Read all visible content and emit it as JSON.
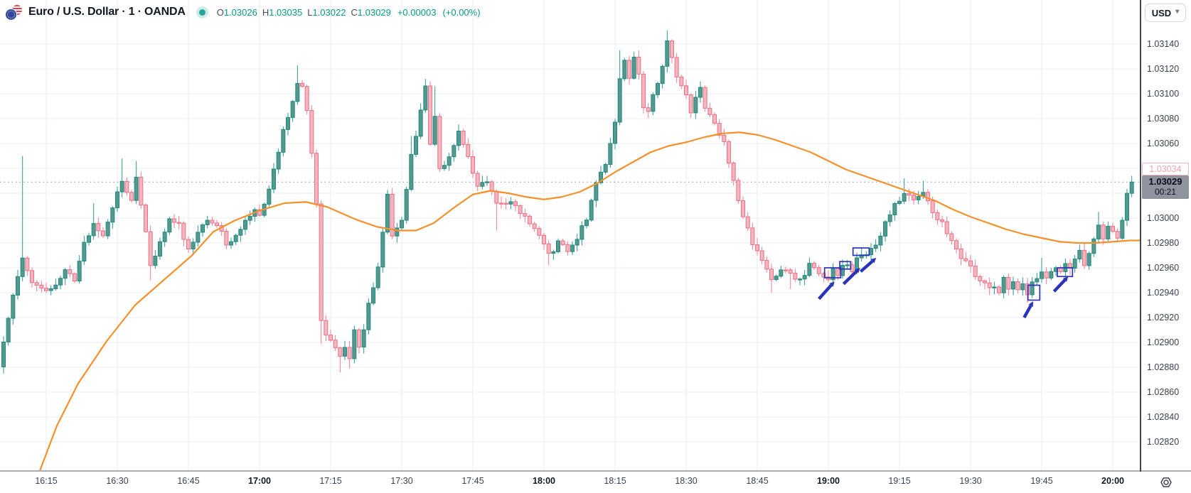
{
  "header": {
    "symbol_title": "Euro / U.S. Dollar · 1 · OANDA",
    "ohlc": {
      "open_label": "O",
      "open": "1.03026",
      "high_label": "H",
      "high": "1.03035",
      "low_label": "L",
      "low": "1.03022",
      "close_label": "C",
      "close": "1.03029",
      "change": "+0.00003",
      "change_percent": "(+0.00%)"
    }
  },
  "price_scale": {
    "currency_button": "USD",
    "ask_badge": "1.03034",
    "last_badge": "1.03029",
    "countdown": "00:21"
  },
  "time_scale": {
    "labels": [
      {
        "text": "16:15",
        "bold": false
      },
      {
        "text": "16:30",
        "bold": false
      },
      {
        "text": "16:45",
        "bold": false
      },
      {
        "text": "17:00",
        "bold": true
      },
      {
        "text": "17:15",
        "bold": false
      },
      {
        "text": "17:30",
        "bold": false
      },
      {
        "text": "17:45",
        "bold": false
      },
      {
        "text": "18:00",
        "bold": true
      },
      {
        "text": "18:15",
        "bold": false
      },
      {
        "text": "18:30",
        "bold": false
      },
      {
        "text": "18:45",
        "bold": false
      },
      {
        "text": "19:00",
        "bold": true
      },
      {
        "text": "19:15",
        "bold": false
      },
      {
        "text": "19:30",
        "bold": false
      },
      {
        "text": "19:45",
        "bold": false
      },
      {
        "text": "20:00",
        "bold": true
      }
    ]
  },
  "colors": {
    "up_body": "#549890",
    "up_border": "#1f897d",
    "up_wick": "#2b9a8e",
    "down_body": "#f3b5bf",
    "down_border": "#ee6e82",
    "down_wick": "#ed7d90",
    "ma_line": "#f5902a",
    "grid_v": "#e5edee",
    "grid_h": "#eaeef4",
    "last_price_dotted": "#8b8e98",
    "annotation": "#2b33b8",
    "ohlc_value": "#089981",
    "ask_label": "#f0a2b4",
    "last_label_bg": "#8f939d"
  },
  "chart_data": {
    "type": "candlestick",
    "title": "Euro / U.S. Dollar",
    "exchange": "OANDA",
    "interval_minutes": 1,
    "candles_visible": 239,
    "visible_time_range": [
      "16:06",
      "20:05"
    ],
    "visible_price_range": [
      1.02797,
      1.03157
    ],
    "session_low": 1.02876,
    "session_high": 1.03151,
    "last_candle": {
      "open": 1.03026,
      "high": 1.03035,
      "low": 1.03022,
      "close": 1.03029,
      "change": 3e-05,
      "change_percent": 0.0
    },
    "last_price": 1.03029,
    "ask_price": 1.03034,
    "grid": {
      "h_step_price": 0.0002,
      "v_step_minutes": 15
    },
    "axis": {
      "price_label_ticks": [
        1.0314,
        1.0312,
        1.031,
        1.0308,
        1.0306,
        1.03,
        1.0298,
        1.0296,
        1.0294,
        1.0292,
        1.029,
        1.0288,
        1.0286,
        1.0284,
        1.0282
      ],
      "hidden_price_ticks": [
        1.0304,
        1.0302
      ],
      "price_grid_ticks": [
        1.0282,
        1.0284,
        1.0286,
        1.0288,
        1.029,
        1.0292,
        1.0294,
        1.0296,
        1.0298,
        1.03,
        1.0302,
        1.0304,
        1.0306,
        1.0308,
        1.031,
        1.0312,
        1.0314
      ]
    },
    "price_path": {
      "description": "close-price anchors, t = minutes after 16:06",
      "anchors": [
        [
          0,
          1.029
        ],
        [
          2,
          1.0294
        ],
        [
          4,
          1.0297
        ],
        [
          6,
          1.0295
        ],
        [
          9,
          1.0294
        ],
        [
          11,
          1.02945
        ],
        [
          13,
          1.0296
        ],
        [
          15,
          1.0295
        ],
        [
          17,
          1.0298
        ],
        [
          19,
          1.02995
        ],
        [
          21,
          1.02985
        ],
        [
          23,
          1.0301
        ],
        [
          25,
          1.0303
        ],
        [
          27,
          1.03015
        ],
        [
          28,
          1.03035
        ],
        [
          30,
          1.0299
        ],
        [
          31,
          1.0296
        ],
        [
          33,
          1.0298
        ],
        [
          35,
          1.03
        ],
        [
          37,
          1.02995
        ],
        [
          39,
          1.02975
        ],
        [
          41,
          1.0299
        ],
        [
          43,
          1.03
        ],
        [
          45,
          1.02995
        ],
        [
          47,
          1.0298
        ],
        [
          49,
          1.02985
        ],
        [
          51,
          1.03
        ],
        [
          53,
          1.03005
        ],
        [
          54,
          1.03
        ],
        [
          55,
          1.0301
        ],
        [
          57,
          1.0304
        ],
        [
          59,
          1.0307
        ],
        [
          61,
          1.03095
        ],
        [
          62,
          1.0311
        ],
        [
          63,
          1.03105
        ],
        [
          64,
          1.03085
        ],
        [
          65,
          1.0305
        ],
        [
          66,
          1.03012
        ],
        [
          67,
          1.02918
        ],
        [
          68,
          1.02905
        ],
        [
          69,
          1.029
        ],
        [
          70,
          1.02895
        ],
        [
          71,
          1.02888
        ],
        [
          72,
          1.02895
        ],
        [
          73,
          1.02885
        ],
        [
          74,
          1.0291
        ],
        [
          75,
          1.02895
        ],
        [
          76,
          1.0291
        ],
        [
          77,
          1.0293
        ],
        [
          79,
          1.0296
        ],
        [
          81,
          1.0302
        ],
        [
          82,
          1.02985
        ],
        [
          84,
          1.03
        ],
        [
          86,
          1.0305
        ],
        [
          88,
          1.03085
        ],
        [
          89,
          1.03105
        ],
        [
          90,
          1.0306
        ],
        [
          91,
          1.0308
        ],
        [
          92,
          1.03038
        ],
        [
          94,
          1.0305
        ],
        [
          96,
          1.0307
        ],
        [
          98,
          1.0305
        ],
        [
          100,
          1.03025
        ],
        [
          102,
          1.0303
        ],
        [
          104,
          1.0301
        ],
        [
          107,
          1.03015
        ],
        [
          110,
          1.03
        ],
        [
          113,
          1.02985
        ],
        [
          115,
          1.0297
        ],
        [
          117,
          1.0298
        ],
        [
          119,
          1.02975
        ],
        [
          121,
          1.02985
        ],
        [
          123,
          1.03
        ],
        [
          125,
          1.0303
        ],
        [
          127,
          1.03045
        ],
        [
          129,
          1.03075
        ],
        [
          130,
          1.0311
        ],
        [
          131,
          1.03125
        ],
        [
          132,
          1.03112
        ],
        [
          133,
          1.03128
        ],
        [
          134,
          1.03118
        ],
        [
          135,
          1.0309
        ],
        [
          136,
          1.03085
        ],
        [
          137,
          1.03098
        ],
        [
          138,
          1.0311
        ],
        [
          139,
          1.03122
        ],
        [
          140,
          1.03142
        ],
        [
          141,
          1.03128
        ],
        [
          142,
          1.03115
        ],
        [
          143,
          1.03105
        ],
        [
          144,
          1.03098
        ],
        [
          145,
          1.03085
        ],
        [
          146,
          1.03095
        ],
        [
          147,
          1.03105
        ],
        [
          148,
          1.0309
        ],
        [
          150,
          1.03075
        ],
        [
          152,
          1.0306
        ],
        [
          154,
          1.0303
        ],
        [
          156,
          1.03
        ],
        [
          158,
          1.0298
        ],
        [
          160,
          1.02965
        ],
        [
          162,
          1.0295
        ],
        [
          164,
          1.0296
        ],
        [
          166,
          1.02955
        ],
        [
          168,
          1.0295
        ],
        [
          170,
          1.02962
        ],
        [
          172,
          1.02955
        ],
        [
          174,
          1.02952
        ],
        [
          175,
          1.02958
        ],
        [
          176,
          1.02952
        ],
        [
          177,
          1.0296
        ],
        [
          178,
          1.02962
        ],
        [
          179,
          1.02958
        ],
        [
          180,
          1.02968
        ],
        [
          181,
          1.02972
        ],
        [
          182,
          1.0297
        ],
        [
          184,
          1.0298
        ],
        [
          186,
          1.02995
        ],
        [
          188,
          1.0301
        ],
        [
          190,
          1.0302
        ],
        [
          192,
          1.03015
        ],
        [
          194,
          1.03022
        ],
        [
          196,
          1.03005
        ],
        [
          198,
          1.02995
        ],
        [
          200,
          1.0298
        ],
        [
          202,
          1.02968
        ],
        [
          204,
          1.0296
        ],
        [
          206,
          1.0295
        ],
        [
          208,
          1.02945
        ],
        [
          210,
          1.02942
        ],
        [
          211,
          1.02952
        ],
        [
          212,
          1.02945
        ],
        [
          213,
          1.0295
        ],
        [
          214,
          1.02942
        ],
        [
          215,
          1.02948
        ],
        [
          216,
          1.0294
        ],
        [
          217,
          1.02948
        ],
        [
          218,
          1.02952
        ],
        [
          219,
          1.02958
        ],
        [
          220,
          1.02952
        ],
        [
          221,
          1.02958
        ],
        [
          222,
          1.02962
        ],
        [
          223,
          1.02958
        ],
        [
          224,
          1.02962
        ],
        [
          225,
          1.02958
        ],
        [
          226,
          1.02965
        ],
        [
          227,
          1.02972
        ],
        [
          228,
          1.0296
        ],
        [
          229,
          1.0297
        ],
        [
          230,
          1.02985
        ],
        [
          231,
          1.02995
        ],
        [
          232,
          1.02985
        ],
        [
          233,
          1.02995
        ],
        [
          234,
          1.0299
        ],
        [
          235,
          1.02985
        ],
        [
          236,
          1.03
        ],
        [
          237,
          1.03018
        ],
        [
          238,
          1.03029
        ]
      ],
      "spikes": [
        {
          "t": 0,
          "low": 1.02878
        },
        {
          "t": 4,
          "high": 1.0305
        },
        {
          "t": 19,
          "high": 1.03012
        },
        {
          "t": 25,
          "high": 1.03048
        },
        {
          "t": 28,
          "high": 1.03046
        },
        {
          "t": 31,
          "low": 1.0295
        },
        {
          "t": 62,
          "high": 1.03123
        },
        {
          "t": 67,
          "low": 1.02899
        },
        {
          "t": 71,
          "low": 1.02876
        },
        {
          "t": 73,
          "low": 1.02879
        },
        {
          "t": 86,
          "high": 1.03066
        },
        {
          "t": 89,
          "high": 1.03112
        },
        {
          "t": 91,
          "high": 1.03106
        },
        {
          "t": 104,
          "low": 1.0299
        },
        {
          "t": 115,
          "low": 1.02962
        },
        {
          "t": 130,
          "high": 1.03135
        },
        {
          "t": 140,
          "high": 1.03151
        },
        {
          "t": 162,
          "low": 1.0294
        },
        {
          "t": 166,
          "low": 1.02943
        },
        {
          "t": 190,
          "high": 1.03032
        },
        {
          "t": 194,
          "high": 1.0303
        },
        {
          "t": 208,
          "low": 1.02938
        },
        {
          "t": 216,
          "low": 1.02932
        },
        {
          "t": 219,
          "high": 1.02968
        },
        {
          "t": 231,
          "high": 1.03005
        },
        {
          "t": 238,
          "high": 1.03034
        }
      ]
    },
    "overlays": [
      {
        "name": "moving-average",
        "type": "line",
        "color": "#f5902a",
        "points": [
          [
            4.5,
            1.02768
          ],
          [
            6,
            1.0278
          ],
          [
            11.25,
            1.02833
          ],
          [
            15.75,
            1.02867
          ],
          [
            21.75,
            1.02901
          ],
          [
            27.75,
            1.0293
          ],
          [
            33.75,
            1.0295
          ],
          [
            39.75,
            1.0297
          ],
          [
            44.25,
            1.02989
          ],
          [
            48.75,
            1.02998
          ],
          [
            54,
            1.03006
          ],
          [
            59.25,
            1.03012
          ],
          [
            63.75,
            1.03013
          ],
          [
            68.25,
            1.03009
          ],
          [
            74.25,
            1.02999
          ],
          [
            78.75,
            1.02993
          ],
          [
            83.25,
            1.0299
          ],
          [
            87,
            1.0299
          ],
          [
            90.75,
            1.02996
          ],
          [
            95.25,
            1.03009
          ],
          [
            99,
            1.03019
          ],
          [
            102.75,
            1.03022
          ],
          [
            106.5,
            1.0302
          ],
          [
            110.25,
            1.03017
          ],
          [
            114,
            1.03015
          ],
          [
            117.75,
            1.03017
          ],
          [
            121.5,
            1.03021
          ],
          [
            125.25,
            1.03028
          ],
          [
            129,
            1.03037
          ],
          [
            132.75,
            1.03045
          ],
          [
            136.5,
            1.03053
          ],
          [
            140.25,
            1.03058
          ],
          [
            144,
            1.03061
          ],
          [
            147.75,
            1.03065
          ],
          [
            151.5,
            1.03068
          ],
          [
            155.25,
            1.03069
          ],
          [
            159,
            1.03067
          ],
          [
            162.75,
            1.03063
          ],
          [
            166.5,
            1.03058
          ],
          [
            170.25,
            1.03053
          ],
          [
            174,
            1.03046
          ],
          [
            177.75,
            1.03039
          ],
          [
            181.5,
            1.03034
          ],
          [
            185.25,
            1.03029
          ],
          [
            189,
            1.03024
          ],
          [
            192.75,
            1.03019
          ],
          [
            196.5,
            1.03014
          ],
          [
            200.25,
            1.03007
          ],
          [
            204,
            1.03001
          ],
          [
            207.75,
            1.02996
          ],
          [
            211.5,
            1.02991
          ],
          [
            215.25,
            1.02987
          ],
          [
            219,
            1.02984
          ],
          [
            222.75,
            1.02981
          ],
          [
            226.5,
            1.0298
          ],
          [
            230.25,
            1.0298
          ],
          [
            234,
            1.02981
          ],
          [
            237.75,
            1.02982
          ],
          [
            239.7,
            1.02982
          ]
        ]
      }
    ],
    "annotations": {
      "color": "#2b33b8",
      "boxes": [
        {
          "t1": 173.2,
          "p1": 1.0296,
          "t2": 176.6,
          "p2": 1.02952
        },
        {
          "t1": 176.4,
          "p1": 1.02965,
          "t2": 178.7,
          "p2": 1.02959
        },
        {
          "t1": 179.2,
          "p1": 1.02976,
          "t2": 182.6,
          "p2": 1.0297
        },
        {
          "t1": 216.1,
          "p1": 1.02946,
          "t2": 218.6,
          "p2": 1.02934
        },
        {
          "t1": 222.3,
          "p1": 1.0296,
          "t2": 225.5,
          "p2": 1.02953
        }
      ],
      "arrows": [
        {
          "t1": 172.0,
          "p1": 1.02935,
          "t2": 175.3,
          "p2": 1.02949
        },
        {
          "t1": 177.2,
          "p1": 1.02947,
          "t2": 180.7,
          "p2": 1.0296
        },
        {
          "t1": 180.8,
          "p1": 1.02957,
          "t2": 184.1,
          "p2": 1.02968
        },
        {
          "t1": 215.3,
          "p1": 1.0292,
          "t2": 217.2,
          "p2": 1.02933
        },
        {
          "t1": 221.6,
          "p1": 1.02941,
          "t2": 224.6,
          "p2": 1.02953
        }
      ]
    }
  }
}
